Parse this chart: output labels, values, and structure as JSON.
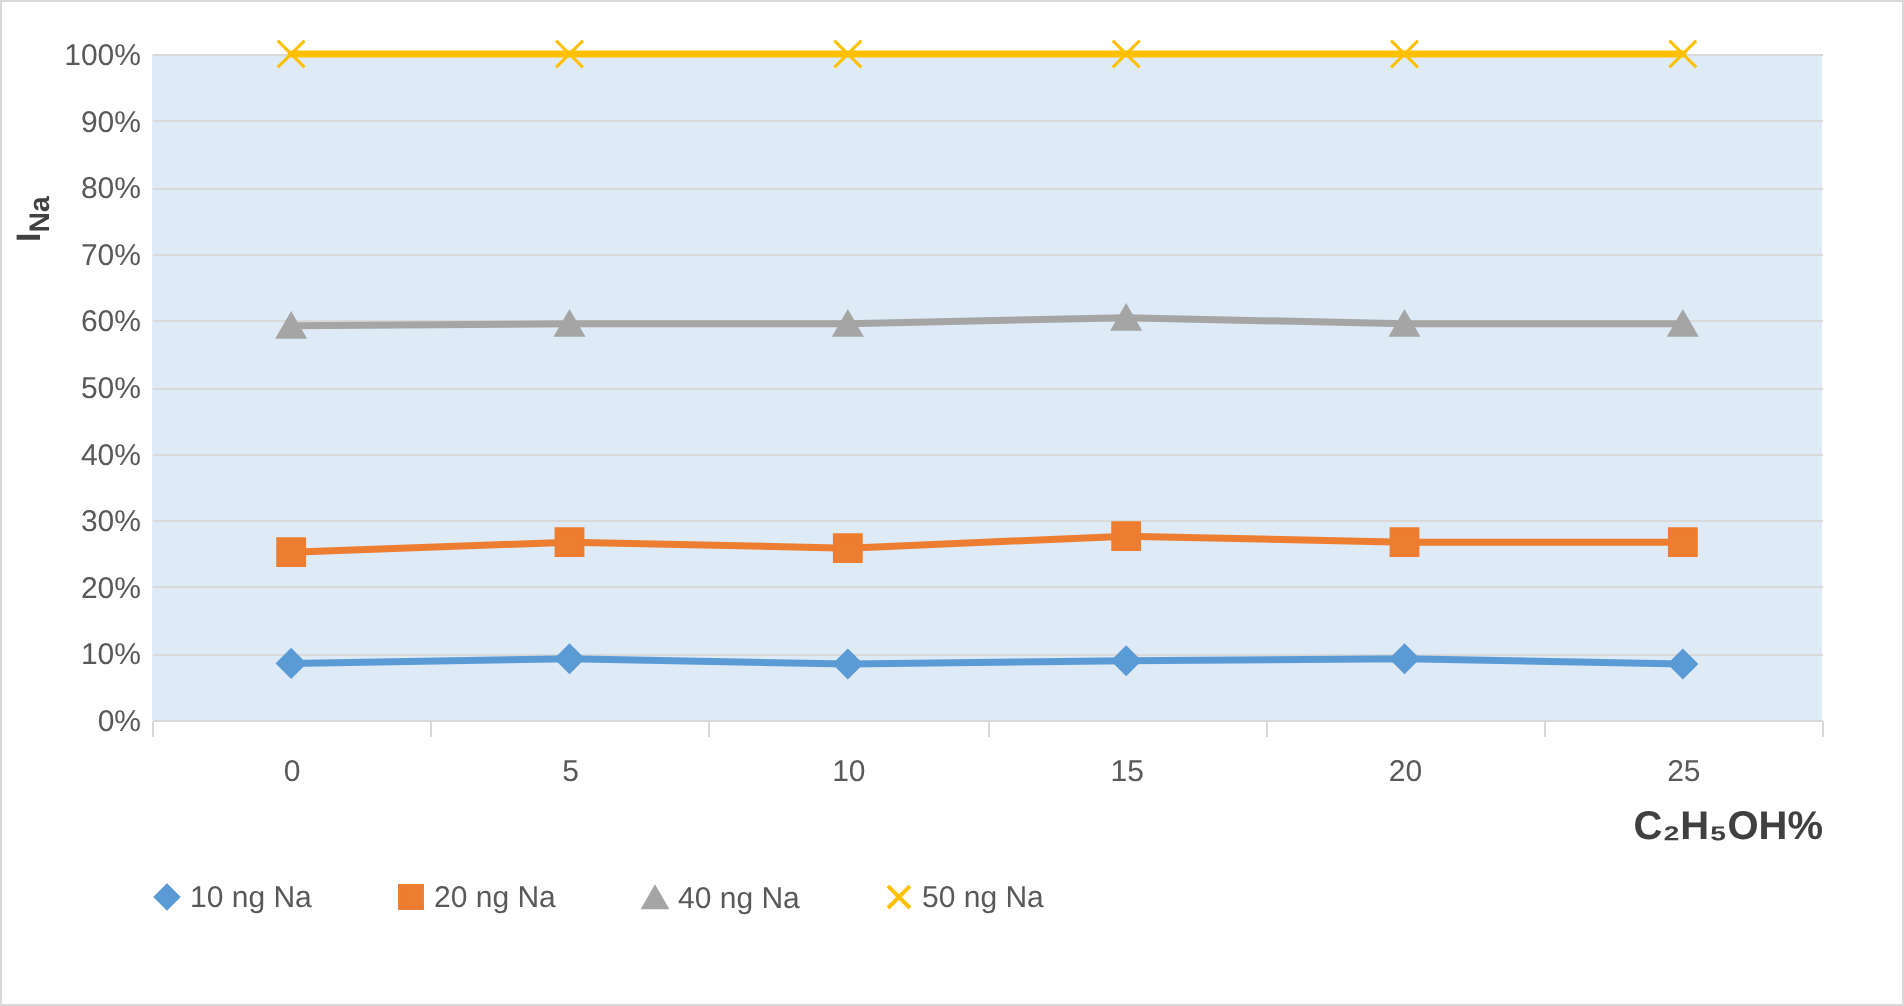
{
  "chart_data": {
    "type": "line",
    "xlabel": "C₂H₅OH%",
    "ylabel": "I$_{Na}$",
    "categories": [
      "0",
      "5",
      "10",
      "15",
      "20",
      "25"
    ],
    "series": [
      {
        "name": "10 ng Na",
        "color": "#5b9bd5",
        "marker": "diamond",
        "values": [
          8.5,
          9.2,
          8.4,
          8.9,
          9.2,
          8.4
        ]
      },
      {
        "name": "20 ng Na",
        "color": "#ed7d31",
        "marker": "square",
        "values": [
          25.2,
          26.7,
          25.8,
          27.6,
          26.7,
          26.7
        ]
      },
      {
        "name": "40 ng Na",
        "color": "#a5a5a5",
        "marker": "triangle",
        "values": [
          59.2,
          59.5,
          59.5,
          60.4,
          59.5,
          59.5
        ]
      },
      {
        "name": "50 ng Na",
        "color": "#ffc000",
        "marker": "cross",
        "values": [
          100,
          100,
          100,
          100,
          100,
          100
        ]
      }
    ],
    "ylim": [
      0,
      100
    ],
    "yticks": [
      {
        "value": 0,
        "label": "0%"
      },
      {
        "value": 10,
        "label": "10%"
      },
      {
        "value": 20,
        "label": "20%"
      },
      {
        "value": 30,
        "label": "30%"
      },
      {
        "value": 40,
        "label": "40%"
      },
      {
        "value": 50,
        "label": "50%"
      },
      {
        "value": 60,
        "label": "60%"
      },
      {
        "value": 70,
        "label": "70%"
      },
      {
        "value": 80,
        "label": "80%"
      },
      {
        "value": 90,
        "label": "90%"
      },
      {
        "value": 100,
        "label": "100%"
      }
    ],
    "grid": "y",
    "legend": "bottom",
    "line_style": "solid"
  }
}
